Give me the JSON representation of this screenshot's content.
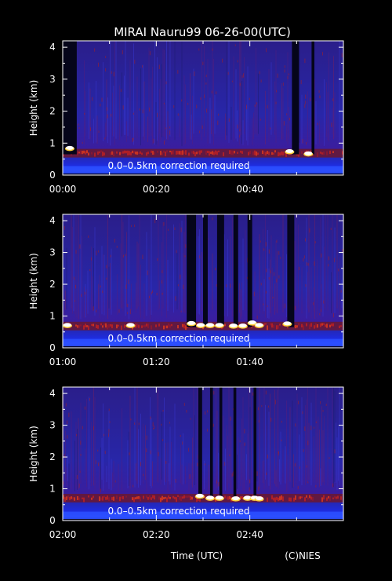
{
  "title": "MIRAI Nauru99 06-26-00(UTC)",
  "xlabel": "Time (UTC)",
  "credit": "(C)NIES",
  "colors": {
    "background": "#000000",
    "foreground": "#ffffff"
  },
  "chart_data": [
    {
      "type": "heatmap",
      "ylabel": "Height (km)",
      "ylim": [
        0,
        4.2
      ],
      "yticks": [
        "0",
        "1",
        "2",
        "3",
        "4"
      ],
      "xlim_minutes": [
        0,
        60
      ],
      "xticks": [
        "00:00",
        "00:20",
        "00:40"
      ],
      "annotation": "0.0–0.5km correction required",
      "cloud_base_km": 0.7,
      "data_gaps_minutes": [
        [
          0,
          3
        ],
        [
          49,
          50.5
        ],
        [
          53.2,
          53.8
        ]
      ],
      "cloud_returns": [
        [
          1.5,
          0.85
        ],
        [
          48.5,
          0.75
        ],
        [
          52.5,
          0.68
        ]
      ]
    },
    {
      "type": "heatmap",
      "ylabel": "Height (km)",
      "ylim": [
        0,
        4.2
      ],
      "yticks": [
        "0",
        "1",
        "2",
        "3",
        "4"
      ],
      "xlim_minutes": [
        60,
        120
      ],
      "xticks": [
        "01:00",
        "01:20",
        "01:40"
      ],
      "annotation": "0.0–0.5km correction required",
      "cloud_base_km": 0.7,
      "data_gaps_minutes": [
        [
          86.5,
          88.5
        ],
        [
          90,
          91
        ],
        [
          93,
          94.5
        ],
        [
          96.5,
          97.5
        ],
        [
          99.5,
          100.5
        ],
        [
          108,
          109.5
        ]
      ],
      "cloud_returns": [
        [
          61,
          0.72
        ],
        [
          74.5,
          0.72
        ],
        [
          87.5,
          0.78
        ],
        [
          89.5,
          0.72
        ],
        [
          91.5,
          0.72
        ],
        [
          93.5,
          0.72
        ],
        [
          96.5,
          0.7
        ],
        [
          98.5,
          0.7
        ],
        [
          100.5,
          0.8
        ],
        [
          102,
          0.72
        ],
        [
          108,
          0.77
        ]
      ]
    },
    {
      "type": "heatmap",
      "ylabel": "Height (km)",
      "ylim": [
        0,
        4.2
      ],
      "yticks": [
        "0",
        "1",
        "2",
        "3",
        "4"
      ],
      "xlim_minutes": [
        120,
        180
      ],
      "xticks": [
        "02:00",
        "02:20",
        "02:40"
      ],
      "annotation": "0.0–0.5km correction required",
      "cloud_base_km": 0.72,
      "data_gaps_minutes": [
        [
          149,
          149.8
        ],
        [
          151.5,
          152.1
        ],
        [
          153.5,
          154.1
        ],
        [
          156.5,
          157.1
        ],
        [
          160.8,
          161.4
        ]
      ],
      "cloud_returns": [
        [
          149.3,
          0.78
        ],
        [
          151.5,
          0.72
        ],
        [
          153.5,
          0.72
        ],
        [
          157,
          0.7
        ],
        [
          159.5,
          0.72
        ],
        [
          161,
          0.72
        ],
        [
          162,
          0.7
        ]
      ]
    }
  ]
}
